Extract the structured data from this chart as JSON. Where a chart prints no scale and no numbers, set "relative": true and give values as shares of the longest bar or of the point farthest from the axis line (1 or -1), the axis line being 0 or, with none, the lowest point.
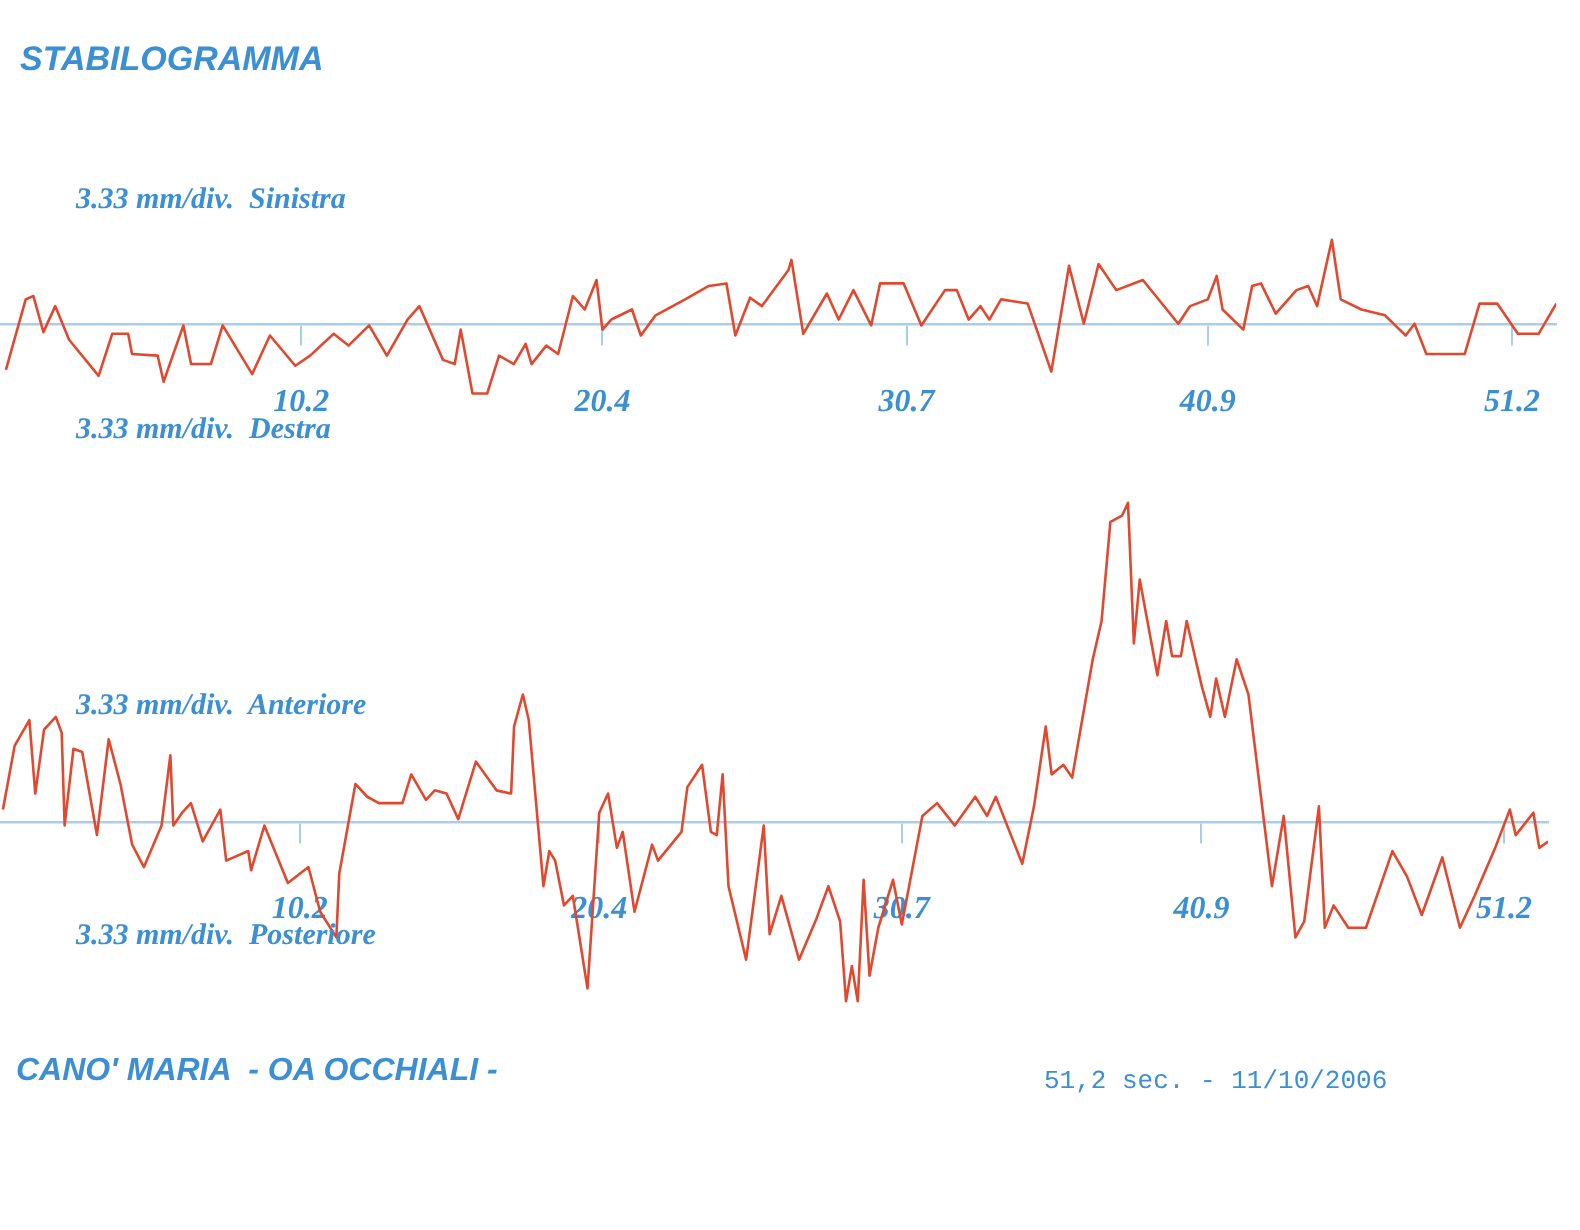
{
  "chart_data": [
    {
      "type": "line",
      "title": "STABILOGRAMMA",
      "relative": true,
      "grid": false,
      "legend": false,
      "marker": "none",
      "line_style": "solid",
      "xlim": [
        0,
        52.7
      ],
      "xticks": [
        10.2,
        20.4,
        30.7,
        40.9,
        51.2
      ],
      "annotations": [
        "3.33 mm/div.  Sinistra",
        "3.33 mm/div.  Destra"
      ],
      "series": [
        {
          "color": "#e0492f",
          "x": [
            0.2,
            0.87,
            1.13,
            1.47,
            1.87,
            2.34,
            3.34,
            3.8,
            4.34,
            4.47,
            5.34,
            5.54,
            6.21,
            6.47,
            7.14,
            7.54,
            8.54,
            9.14,
            10.0,
            10.5,
            11.3,
            11.8,
            12.5,
            13.1,
            13.8,
            14.2,
            15.0,
            15.4,
            15.6,
            16.0,
            16.5,
            16.9,
            17.4,
            17.8,
            18.0,
            18.5,
            18.9,
            19.4,
            19.8,
            20.2,
            20.4,
            20.7,
            21.4,
            21.7,
            22.2,
            23.2,
            24.0,
            24.6,
            24.9,
            25.4,
            25.8,
            26.7,
            26.8,
            27.2,
            28.0,
            28.4,
            28.9,
            29.5,
            29.8,
            30.6,
            31.2,
            32.0,
            32.4,
            32.8,
            33.2,
            33.5,
            33.9,
            34.8,
            35.6,
            36.2,
            36.7,
            37.2,
            37.8,
            38.7,
            39.9,
            40.3,
            40.9,
            41.2,
            41.4,
            42.1,
            42.4,
            42.7,
            43.2,
            43.9,
            44.3,
            44.6,
            45.1,
            45.4,
            46.1,
            46.9,
            47.6,
            47.9,
            48.3,
            48.6,
            49.6,
            50.1,
            50.7,
            51.4,
            52.1,
            52.7
          ],
          "values": [
            -0.55,
            0.29,
            0.33,
            -0.1,
            0.21,
            -0.19,
            -0.62,
            -0.12,
            -0.12,
            -0.36,
            -0.38,
            -0.69,
            -0.02,
            -0.48,
            -0.48,
            -0.02,
            -0.6,
            -0.14,
            -0.5,
            -0.38,
            -0.12,
            -0.26,
            -0.02,
            -0.38,
            0.05,
            0.21,
            -0.43,
            -0.48,
            -0.07,
            -0.83,
            -0.83,
            -0.38,
            -0.48,
            -0.24,
            -0.48,
            -0.26,
            -0.36,
            0.33,
            0.17,
            0.52,
            -0.07,
            0.05,
            0.17,
            -0.14,
            0.1,
            0.29,
            0.45,
            0.48,
            -0.14,
            0.31,
            0.21,
            0.64,
            0.76,
            -0.12,
            0.36,
            0.05,
            0.4,
            -0.02,
            0.48,
            0.48,
            -0.02,
            0.4,
            0.4,
            0.05,
            0.21,
            0.05,
            0.29,
            0.24,
            -0.57,
            0.69,
            0.0,
            0.71,
            0.4,
            0.52,
            0.0,
            0.21,
            0.29,
            0.57,
            0.17,
            -0.07,
            0.45,
            0.48,
            0.12,
            0.4,
            0.45,
            0.21,
            1.0,
            0.29,
            0.17,
            0.1,
            -0.14,
            0.0,
            -0.36,
            -0.36,
            -0.36,
            0.24,
            0.24,
            -0.12,
            -0.12,
            0.24
          ]
        }
      ]
    },
    {
      "type": "line",
      "relative": true,
      "grid": false,
      "legend": false,
      "marker": "none",
      "line_style": "solid",
      "xlim": [
        0,
        52.7
      ],
      "xticks": [
        10.2,
        20.4,
        30.7,
        40.9,
        51.2
      ],
      "annotations": [
        "3.33 mm/div.  Anteriore",
        "3.33 mm/div.  Posteriore",
        "CANO' MARIA  - OA OCCHIALI -",
        "51,2 sec. - 11/10/2006"
      ],
      "series": [
        {
          "color": "#e0492f",
          "x": [
            0.1,
            0.5,
            1.0,
            1.2,
            1.5,
            1.9,
            2.1,
            2.2,
            2.5,
            2.8,
            3.3,
            3.7,
            4.1,
            4.5,
            4.9,
            5.5,
            5.8,
            5.9,
            6.2,
            6.5,
            6.9,
            7.5,
            7.7,
            8.45,
            8.55,
            9.0,
            9.8,
            10.5,
            10.9,
            11.45,
            11.55,
            12.1,
            12.5,
            12.9,
            13.7,
            14.0,
            14.5,
            14.8,
            15.2,
            15.6,
            16.2,
            16.9,
            17.4,
            17.5,
            17.8,
            18.0,
            18.5,
            18.7,
            18.9,
            19.2,
            19.5,
            20.0,
            20.4,
            20.7,
            21.0,
            21.2,
            21.6,
            22.2,
            22.4,
            23.2,
            23.4,
            23.9,
            24.2,
            24.4,
            24.6,
            24.8,
            25.4,
            26.0,
            26.2,
            26.6,
            27.2,
            27.8,
            28.2,
            28.6,
            28.8,
            29.0,
            29.2,
            29.4,
            29.6,
            29.9,
            30.4,
            30.7,
            31.4,
            31.9,
            32.5,
            33.2,
            33.6,
            33.9,
            34.8,
            35.2,
            35.6,
            35.8,
            36.2,
            36.5,
            36.8,
            37.2,
            37.5,
            37.8,
            38.2,
            38.4,
            38.6,
            38.8,
            39.4,
            39.7,
            39.9,
            40.2,
            40.4,
            40.9,
            41.2,
            41.4,
            41.7,
            42.1,
            42.5,
            43.3,
            43.7,
            44.1,
            44.4,
            44.9,
            45.1,
            45.4,
            45.9,
            46.5,
            47.4,
            47.9,
            48.4,
            49.1,
            49.7,
            50.2,
            50.9,
            51.4,
            51.6,
            52.2,
            52.4,
            52.7
          ],
          "values": [
            0.04,
            0.24,
            0.32,
            0.09,
            0.29,
            0.33,
            0.28,
            -0.01,
            0.23,
            0.22,
            -0.04,
            0.26,
            0.12,
            -0.07,
            -0.14,
            -0.01,
            0.21,
            -0.01,
            0.03,
            0.06,
            -0.06,
            0.04,
            -0.12,
            -0.09,
            -0.15,
            -0.01,
            -0.19,
            -0.14,
            -0.28,
            -0.36,
            -0.16,
            0.12,
            0.08,
            0.06,
            0.06,
            0.15,
            0.07,
            0.1,
            0.09,
            0.01,
            0.19,
            0.1,
            0.09,
            0.3,
            0.4,
            0.32,
            -0.2,
            -0.09,
            -0.12,
            -0.26,
            -0.23,
            -0.52,
            0.03,
            0.09,
            -0.08,
            -0.03,
            -0.28,
            -0.07,
            -0.12,
            -0.03,
            0.11,
            0.18,
            -0.03,
            -0.04,
            0.15,
            -0.2,
            -0.43,
            -0.01,
            -0.35,
            -0.23,
            -0.43,
            -0.3,
            -0.2,
            -0.31,
            -0.56,
            -0.45,
            -0.56,
            -0.18,
            -0.48,
            -0.33,
            -0.18,
            -0.32,
            0.02,
            0.06,
            -0.01,
            0.08,
            0.02,
            0.08,
            -0.13,
            0.05,
            0.3,
            0.15,
            0.18,
            0.14,
            0.3,
            0.51,
            0.63,
            0.94,
            0.96,
            1.0,
            0.56,
            0.76,
            0.46,
            0.63,
            0.52,
            0.52,
            0.63,
            0.43,
            0.33,
            0.45,
            0.33,
            0.51,
            0.4,
            -0.2,
            0.02,
            -0.36,
            -0.31,
            0.05,
            -0.33,
            -0.26,
            -0.33,
            -0.33,
            -0.09,
            -0.17,
            -0.29,
            -0.11,
            -0.33,
            -0.23,
            -0.08,
            0.04,
            -0.04,
            0.03,
            -0.08,
            -0.06
          ]
        }
      ]
    }
  ]
}
